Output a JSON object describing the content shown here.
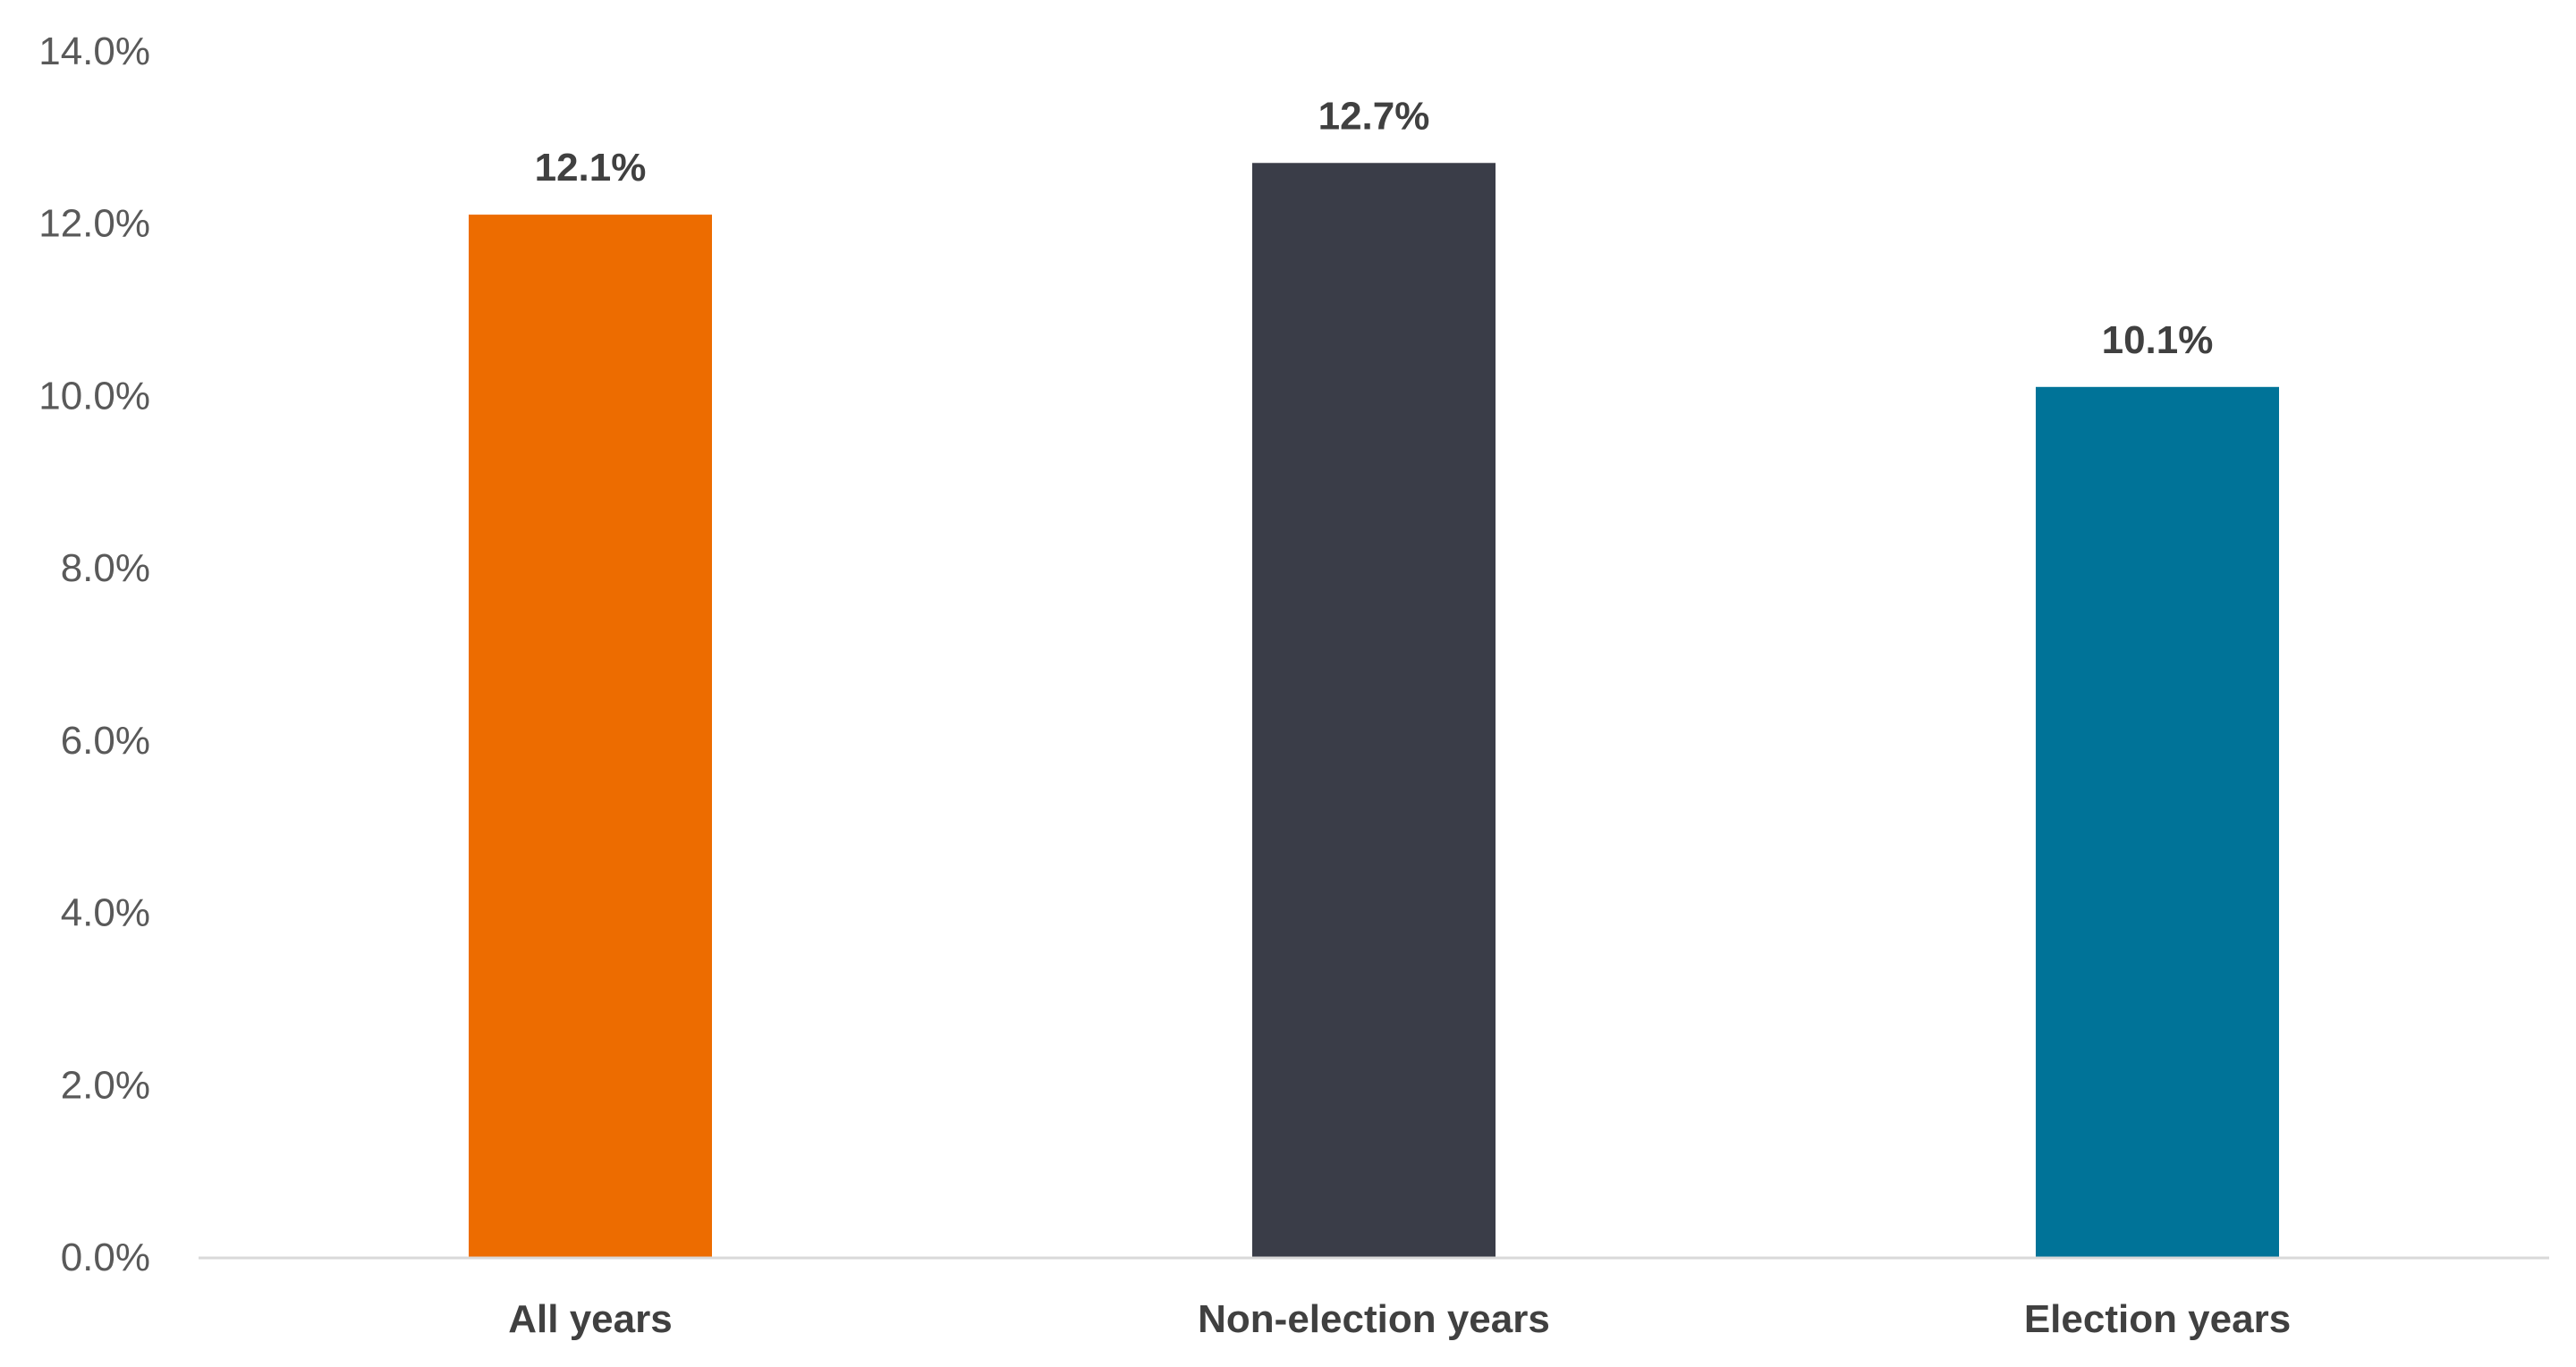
{
  "chart_data": {
    "type": "bar",
    "categories": [
      "All years",
      "Non-election years",
      "Election years"
    ],
    "values": [
      12.1,
      12.7,
      10.1
    ],
    "value_labels": [
      "12.1%",
      "12.7%",
      "10.1%"
    ],
    "bar_colors": [
      "#ED6C00",
      "#3A3D48",
      "#007398"
    ],
    "title": "",
    "xlabel": "",
    "ylabel": "",
    "ylim": [
      0,
      14
    ],
    "yticks": [
      0,
      2,
      4,
      6,
      8,
      10,
      12,
      14
    ],
    "ytick_labels": [
      "0.0%",
      "2.0%",
      "4.0%",
      "6.0%",
      "8.0%",
      "10.0%",
      "12.0%",
      "14.0%"
    ],
    "grid": false,
    "legend": false,
    "axis_color": "#D9D9D9"
  }
}
